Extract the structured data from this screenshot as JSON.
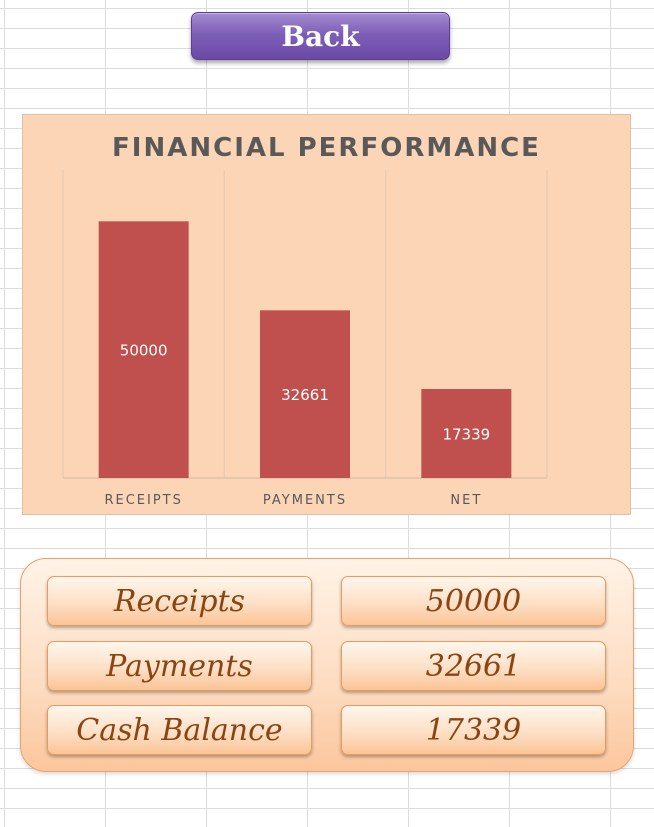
{
  "back_button": {
    "label": "Back"
  },
  "chart": {
    "title": "FINANCIAL PERFORMANCE"
  },
  "chart_data": {
    "type": "bar",
    "title": "FINANCIAL PERFORMANCE",
    "categories": [
      "RECEIPTS",
      "PAYMENTS",
      "NET"
    ],
    "values": [
      50000,
      32661,
      17339
    ],
    "data_labels": [
      "50000",
      "32661",
      "17339"
    ],
    "ylim": [
      0,
      60000
    ],
    "grid": "vertical separators",
    "bar_color": "#c0504d",
    "legend": "none"
  },
  "summary": {
    "rows": [
      {
        "label": "Receipts",
        "value": "50000"
      },
      {
        "label": "Payments",
        "value": "32661"
      },
      {
        "label": "Cash Balance",
        "value": "17339"
      }
    ]
  },
  "colors": {
    "back_button": "#7e5fb8",
    "chart_background": "#fbd5b5",
    "bar": "#c0504d",
    "summary_text": "#8b4513",
    "summary_border": "#e79b63"
  }
}
